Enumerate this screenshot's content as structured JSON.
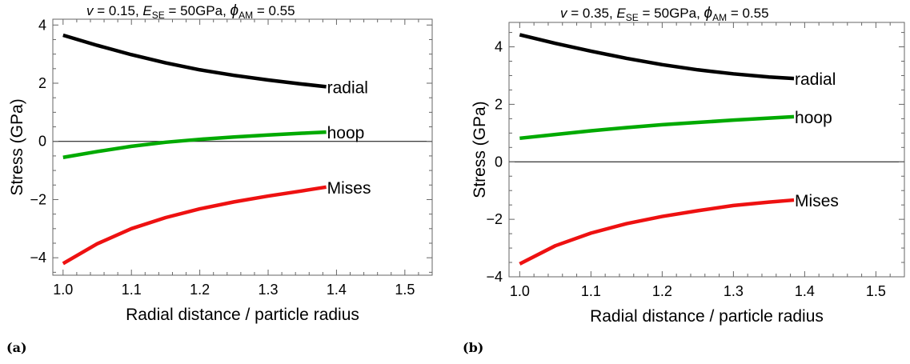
{
  "chart_data": [
    {
      "type": "line",
      "panel_label": "(a)",
      "title_parts": {
        "nu_sym": "v",
        "nu_val": " = 0.15,",
        "e_sym": "E",
        "e_sub": "SE",
        "e_val": " = 50GPa,",
        "phi_sym": "ϕ",
        "phi_sub": "AM",
        "phi_val": " = 0.55"
      },
      "xlabel": "Radial distance / particle radius",
      "ylabel": "Stress (GPa)",
      "xlim": [
        0.985,
        1.54
      ],
      "ylim": [
        -4.6,
        4.2
      ],
      "xticks": [
        1.0,
        1.1,
        1.2,
        1.3,
        1.4,
        1.5
      ],
      "xtick_labels": [
        "1.0",
        "1.1",
        "1.2",
        "1.3",
        "1.4",
        "1.5"
      ],
      "yticks": [
        -4,
        -2,
        0,
        2,
        4
      ],
      "ytick_labels": [
        "−4",
        "−2",
        "0",
        "2",
        "4"
      ],
      "zero_line": true,
      "series": [
        {
          "name": "radial",
          "color": "#000000",
          "x": [
            1.0,
            1.05,
            1.1,
            1.15,
            1.2,
            1.25,
            1.3,
            1.35,
            1.385
          ],
          "y": [
            3.65,
            3.3,
            2.98,
            2.7,
            2.46,
            2.27,
            2.11,
            1.97,
            1.88
          ]
        },
        {
          "name": "hoop",
          "color": "#00aa00",
          "x": [
            1.0,
            1.05,
            1.1,
            1.15,
            1.2,
            1.25,
            1.3,
            1.35,
            1.385
          ],
          "y": [
            -0.55,
            -0.35,
            -0.17,
            -0.03,
            0.07,
            0.15,
            0.22,
            0.28,
            0.32
          ]
        },
        {
          "name": "Mises",
          "color": "#ee1111",
          "x": [
            1.0,
            1.05,
            1.1,
            1.15,
            1.2,
            1.25,
            1.3,
            1.35,
            1.385
          ],
          "y": [
            -4.2,
            -3.52,
            -3.0,
            -2.62,
            -2.32,
            -2.08,
            -1.88,
            -1.7,
            -1.57
          ]
        }
      ]
    },
    {
      "type": "line",
      "panel_label": "(b)",
      "title_parts": {
        "nu_sym": "v",
        "nu_val": " = 0.35,",
        "e_sym": "E",
        "e_sub": "SE",
        "e_val": " = 50GPa,",
        "phi_sym": "ϕ",
        "phi_sub": "AM",
        "phi_val": " = 0.55"
      },
      "xlabel": "Radial distance / particle radius",
      "ylabel": "Stress (GPa)",
      "xlim": [
        0.985,
        1.54
      ],
      "ylim": [
        -4.0,
        4.85
      ],
      "xticks": [
        1.0,
        1.1,
        1.2,
        1.3,
        1.4,
        1.5
      ],
      "xtick_labels": [
        "1.0",
        "1.1",
        "1.2",
        "1.3",
        "1.4",
        "1.5"
      ],
      "yticks": [
        -4,
        -2,
        0,
        2,
        4
      ],
      "ytick_labels": [
        "−4",
        "−2",
        "0",
        "2",
        "4"
      ],
      "zero_line": true,
      "series": [
        {
          "name": "radial",
          "color": "#000000",
          "x": [
            1.0,
            1.05,
            1.1,
            1.15,
            1.2,
            1.25,
            1.3,
            1.35,
            1.385
          ],
          "y": [
            4.42,
            4.12,
            3.85,
            3.6,
            3.38,
            3.2,
            3.06,
            2.95,
            2.9
          ]
        },
        {
          "name": "hoop",
          "color": "#00aa00",
          "x": [
            1.0,
            1.05,
            1.1,
            1.15,
            1.2,
            1.25,
            1.3,
            1.35,
            1.385
          ],
          "y": [
            0.82,
            0.95,
            1.08,
            1.19,
            1.29,
            1.37,
            1.45,
            1.52,
            1.57
          ]
        },
        {
          "name": "Mises",
          "color": "#ee1111",
          "x": [
            1.0,
            1.05,
            1.1,
            1.15,
            1.2,
            1.25,
            1.3,
            1.35,
            1.385
          ],
          "y": [
            -3.55,
            -2.92,
            -2.48,
            -2.15,
            -1.9,
            -1.7,
            -1.52,
            -1.4,
            -1.33
          ]
        }
      ]
    }
  ]
}
